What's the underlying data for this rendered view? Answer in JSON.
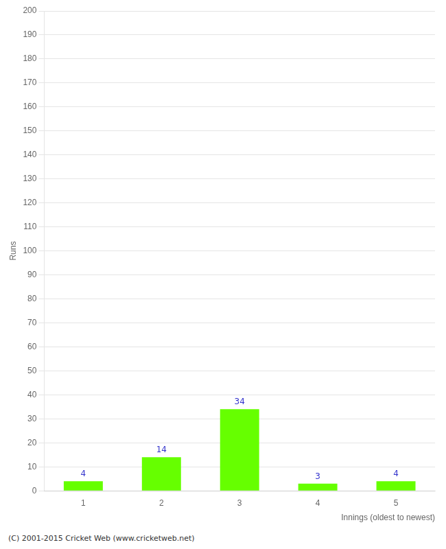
{
  "chart_data": {
    "type": "bar",
    "categories": [
      1,
      2,
      3,
      4,
      5
    ],
    "values": [
      4,
      14,
      34,
      3,
      4
    ],
    "color": "#66ff00",
    "x_label": "Innings (oldest to newest)",
    "y_label": "Runs",
    "ylim": [
      0,
      200
    ],
    "yticks": [
      0,
      10,
      20,
      30,
      40,
      50,
      60,
      70,
      80,
      90,
      100,
      110,
      120,
      130,
      140,
      150,
      160,
      170,
      180,
      190,
      200
    ],
    "grid": true,
    "data_labels": true,
    "annotations": [
      "(C) 2001-2015 Cricket Web (www.cricketweb.net)"
    ]
  }
}
